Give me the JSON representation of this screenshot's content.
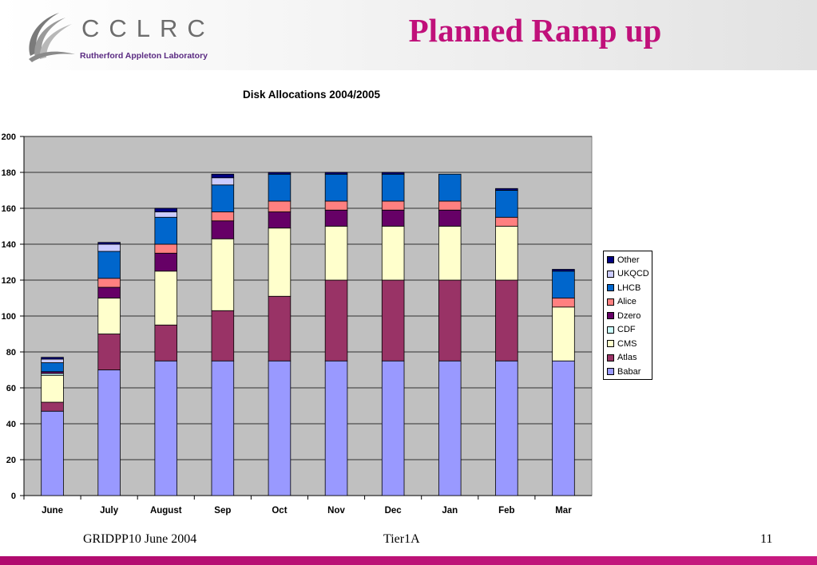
{
  "header": {
    "logo_name": "CCLRC",
    "logo_subtitle": "Rutherford Appleton Laboratory",
    "title": "Planned Ramp up"
  },
  "colors": {
    "title": "#c0107a",
    "bottom_bar": "#b00a6e",
    "plot_background": "#c0c0c0"
  },
  "footer": {
    "left": "GRIDPP10 June 2004",
    "center": "Tier1A",
    "right": "11"
  },
  "chart_data": {
    "type": "bar",
    "stacked": true,
    "title": "Disk Allocations 2004/2005",
    "xlabel": "",
    "ylabel": "",
    "ylim": [
      0,
      200
    ],
    "yticks": [
      0,
      20,
      40,
      60,
      80,
      100,
      120,
      140,
      160,
      180,
      200
    ],
    "ytick_labels": [
      "0",
      "20",
      "40",
      "60",
      "80",
      "100",
      "120",
      "140",
      "160",
      "180",
      "200"
    ],
    "grid": true,
    "legend_position": "right",
    "categories": [
      "June",
      "July",
      "August",
      "Sep",
      "Oct",
      "Nov",
      "Dec",
      "Jan",
      "Feb",
      "Mar"
    ],
    "series": [
      {
        "name": "Babar",
        "color": "#9999ff",
        "values": [
          47,
          70,
          75,
          75,
          75,
          75,
          75,
          75,
          75,
          75
        ]
      },
      {
        "name": "Atlas",
        "color": "#993366",
        "values": [
          5,
          20,
          20,
          28,
          36,
          45,
          45,
          45,
          45,
          0
        ]
      },
      {
        "name": "CMS",
        "color": "#ffffcc",
        "values": [
          15,
          20,
          30,
          40,
          38,
          30,
          30,
          30,
          30,
          30
        ]
      },
      {
        "name": "CDF",
        "color": "#ccffff",
        "values": [
          1,
          0,
          0,
          0,
          0,
          0,
          0,
          0,
          0,
          0
        ]
      },
      {
        "name": "Dzero",
        "color": "#660066",
        "values": [
          1,
          6,
          10,
          10,
          9,
          9,
          9,
          9,
          0,
          0
        ]
      },
      {
        "name": "Alice",
        "color": "#ff8080",
        "values": [
          0,
          5,
          5,
          5,
          6,
          5,
          5,
          5,
          5,
          5
        ]
      },
      {
        "name": "LHCB",
        "color": "#0066cc",
        "values": [
          5,
          15,
          15,
          15,
          15,
          15,
          15,
          15,
          15,
          15
        ]
      },
      {
        "name": "UKQCD",
        "color": "#ccccff",
        "values": [
          2,
          4,
          3,
          4,
          0,
          0,
          0,
          0,
          0,
          0
        ]
      },
      {
        "name": "Other",
        "color": "#000080",
        "values": [
          1,
          1,
          2,
          2,
          1,
          1,
          1,
          0,
          1,
          1
        ]
      }
    ],
    "legend_order": [
      "Other",
      "UKQCD",
      "LHCB",
      "Alice",
      "Dzero",
      "CDF",
      "CMS",
      "Atlas",
      "Babar"
    ]
  }
}
